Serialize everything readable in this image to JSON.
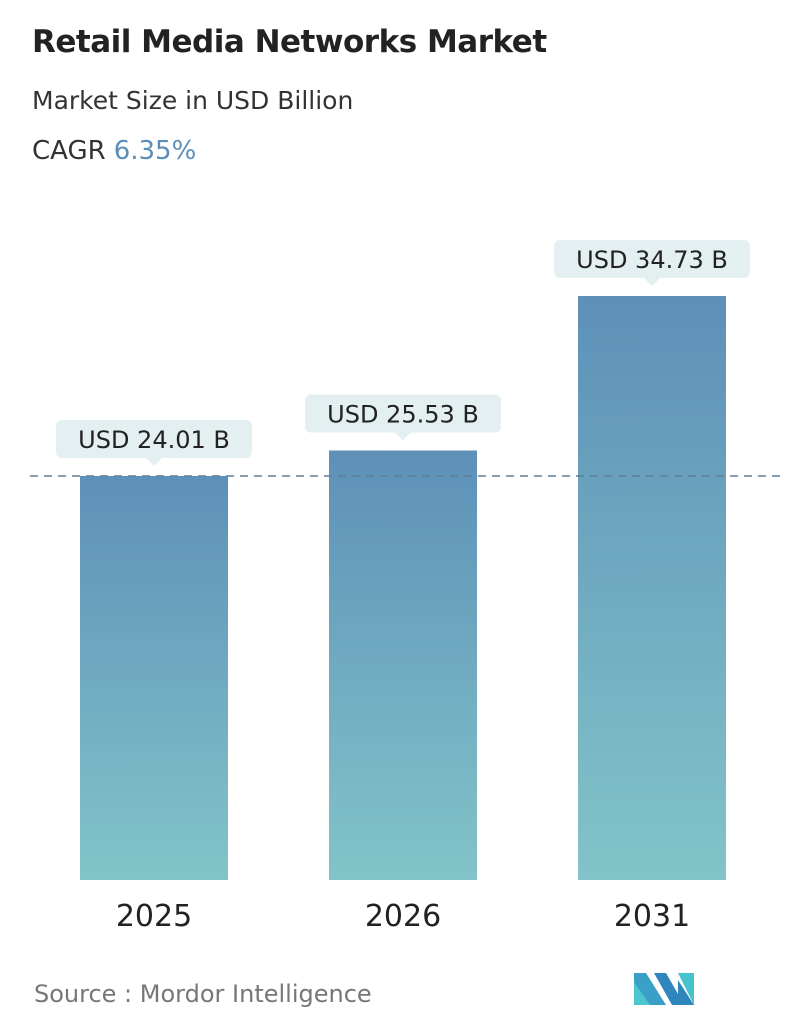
{
  "header": {
    "title": "Retail Media Networks Market",
    "subtitle": "Market Size in USD Billion",
    "cagr_label": "CAGR",
    "cagr_value": "6.35%"
  },
  "chart_data": {
    "type": "bar",
    "categories": [
      "2025",
      "2026",
      "2031"
    ],
    "values": [
      24.01,
      25.53,
      34.73
    ],
    "data_labels": [
      "USD 24.01 B",
      "USD 25.53 B",
      "USD 34.73 B"
    ],
    "unit": "USD Billion",
    "reference_line": 24.01,
    "grid": false,
    "colors": {
      "bar_top": "#5e90b8",
      "bar_bottom": "#82c4c9",
      "label_bg": "#e3eff1",
      "ref_line": "#5e7f96"
    }
  },
  "footer": {
    "source": "Source :  Mordor Intelligence",
    "logo": "Mordor Intelligence"
  }
}
